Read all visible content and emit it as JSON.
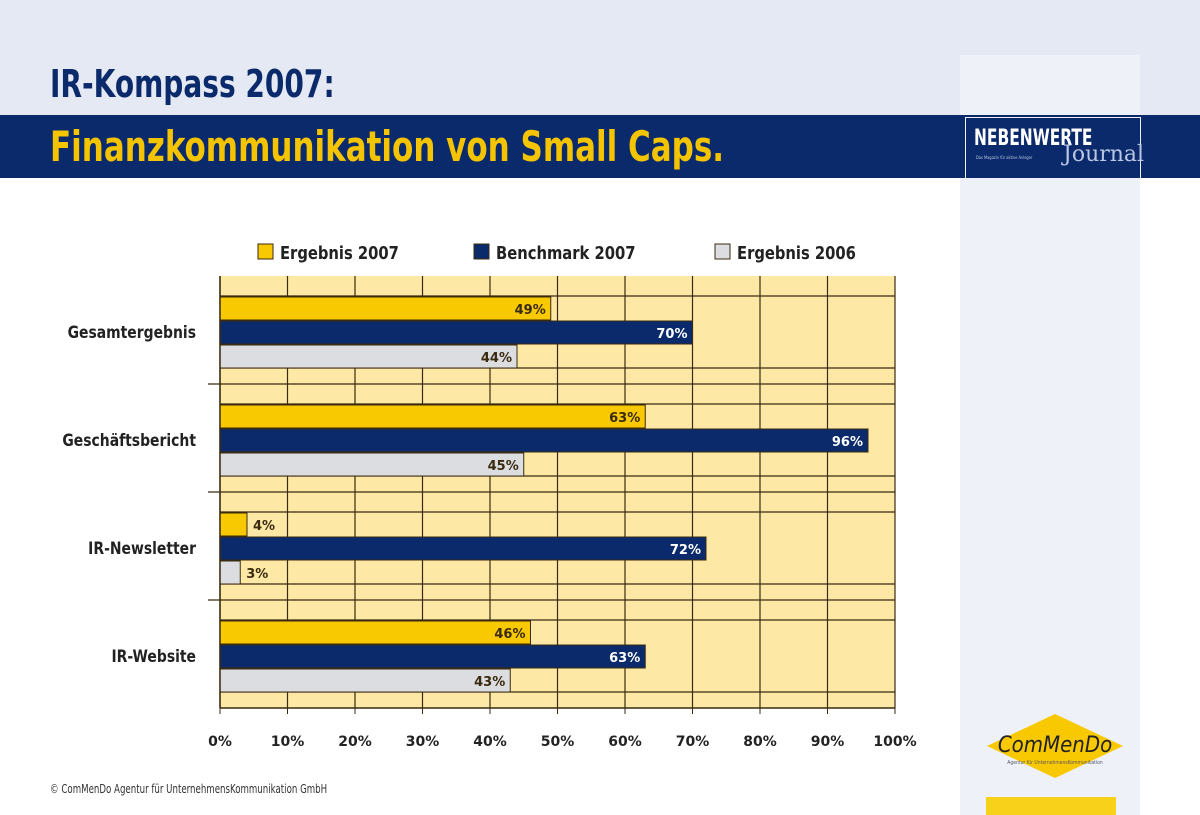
{
  "header": {
    "title": "IR-Kompass 2007:",
    "subtitle": "Finanzkommunikation von Small Caps."
  },
  "logo": {
    "name": "NEBENWERTE",
    "sub": "Journal",
    "tagline": "Das Magazin für aktive Anleger"
  },
  "commendo": {
    "name": "ComMenDo",
    "tagline": "Agentur für UnternehmensKommunikation"
  },
  "footer": {
    "copyright": "© ComMenDo Agentur für UnternehmensKommunikation GmbH"
  },
  "colors": {
    "navy": "#0b2a6b",
    "yellow": "#f8c800",
    "grey": "#dcdde0",
    "plot_bg": "#fde9a5"
  },
  "chart_data": {
    "type": "bar",
    "orientation": "horizontal",
    "categories": [
      "Gesamtergebnis",
      "Geschäftsbericht",
      "IR-Newsletter",
      "IR-Website"
    ],
    "series": [
      {
        "name": "Ergebnis 2007",
        "color": "#f8c800",
        "values": [
          49,
          63,
          4,
          46
        ],
        "labels": [
          "49%",
          "63%",
          "4%",
          "46%"
        ]
      },
      {
        "name": "Benchmark 2007",
        "color": "#0b2a6b",
        "values": [
          70,
          96,
          72,
          63
        ],
        "labels": [
          "70%",
          "96%",
          "72%",
          "63%"
        ]
      },
      {
        "name": "Ergebnis 2006",
        "color": "#dcdde0",
        "values": [
          44,
          45,
          3,
          43
        ],
        "labels": [
          "44%",
          "45%",
          "3%",
          "43%"
        ]
      }
    ],
    "xlim": [
      0,
      100
    ],
    "xticks": [
      "0%",
      "10%",
      "20%",
      "30%",
      "40%",
      "50%",
      "60%",
      "70%",
      "80%",
      "90%",
      "100%"
    ],
    "grid": true,
    "legend": "top"
  }
}
